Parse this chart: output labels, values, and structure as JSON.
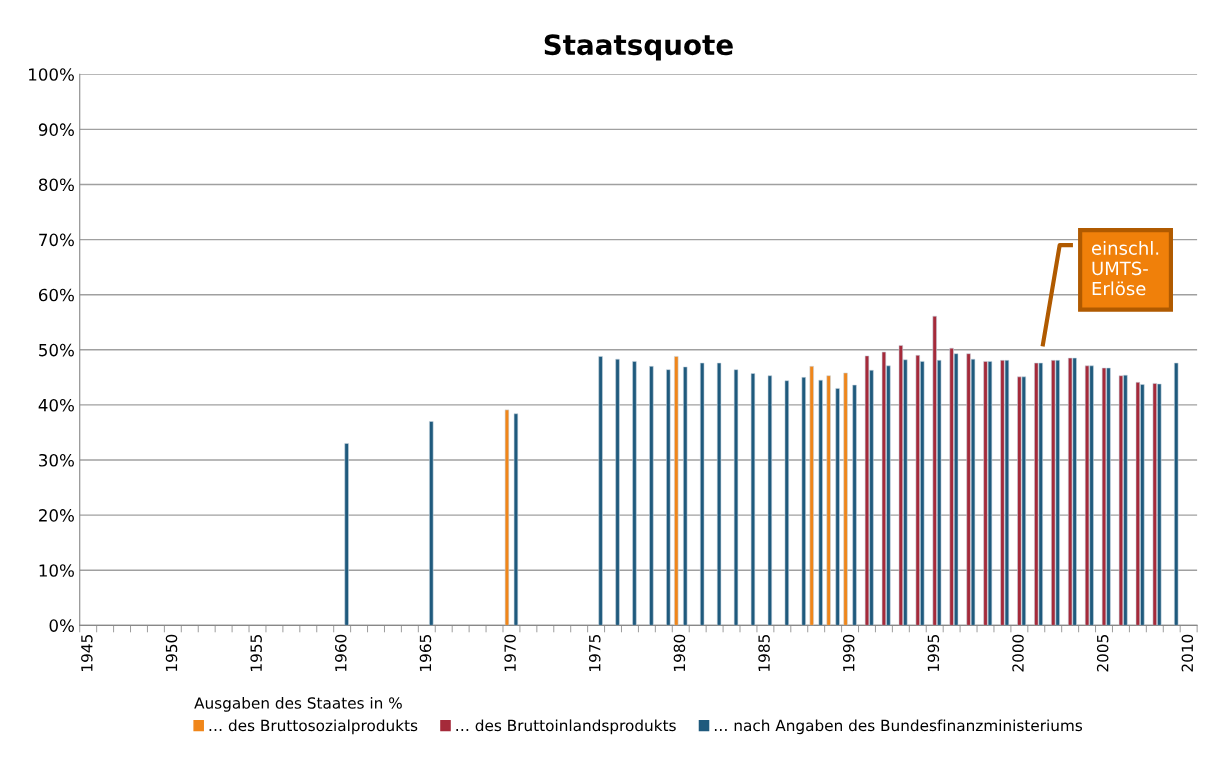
{
  "chart_data": {
    "type": "bar",
    "title": "Staatsquote",
    "categories": [
      "1945",
      null,
      null,
      null,
      null,
      "1950",
      null,
      null,
      null,
      null,
      "1955",
      null,
      null,
      null,
      null,
      "1960",
      null,
      null,
      null,
      null,
      "1965",
      null,
      null,
      null,
      null,
      "1970",
      null,
      null,
      null,
      null,
      "1975",
      null,
      null,
      null,
      null,
      "1980",
      null,
      null,
      null,
      null,
      "1985",
      null,
      null,
      null,
      null,
      "1990",
      null,
      null,
      null,
      null,
      "1995",
      null,
      null,
      null,
      null,
      "2000",
      null,
      null,
      null,
      null,
      "2005",
      null,
      null,
      null,
      null,
      "2010"
    ],
    "series": [
      {
        "name": "… des Bruttosozialprodukts",
        "color": "#f0861a",
        "values": [
          null,
          null,
          null,
          null,
          null,
          null,
          null,
          null,
          null,
          null,
          null,
          null,
          null,
          null,
          null,
          null,
          null,
          null,
          null,
          null,
          null,
          null,
          null,
          null,
          null,
          39.1,
          null,
          null,
          null,
          null,
          null,
          null,
          null,
          null,
          null,
          48.8,
          null,
          null,
          null,
          null,
          null,
          null,
          null,
          47.0,
          45.3,
          45.8,
          null,
          null,
          null,
          null,
          null,
          null,
          null,
          null,
          null,
          null,
          null,
          null,
          null,
          null,
          null,
          null,
          null,
          null,
          null,
          null
        ]
      },
      {
        "name": "… des Bruttoinlandsprodukts",
        "color": "#a52a3a",
        "values": [
          null,
          null,
          null,
          null,
          null,
          null,
          null,
          null,
          null,
          null,
          null,
          null,
          null,
          null,
          null,
          null,
          null,
          null,
          null,
          null,
          null,
          null,
          null,
          null,
          null,
          null,
          null,
          null,
          null,
          null,
          null,
          null,
          null,
          null,
          null,
          null,
          null,
          null,
          null,
          null,
          null,
          null,
          null,
          null,
          null,
          null,
          48.9,
          49.6,
          50.8,
          49.0,
          56.1,
          50.3,
          49.3,
          47.9,
          48.1,
          45.1,
          47.6,
          48.1,
          48.5,
          47.1,
          46.7,
          45.3,
          44.1,
          43.9,
          null,
          null
        ]
      },
      {
        "name": "… nach Angaben des Bundesfinanzministeriums",
        "color": "#1f5a7d",
        "values": [
          null,
          null,
          null,
          null,
          null,
          null,
          null,
          null,
          null,
          null,
          null,
          null,
          null,
          null,
          null,
          33.0,
          null,
          null,
          null,
          null,
          37.0,
          null,
          null,
          null,
          null,
          38.4,
          null,
          null,
          null,
          null,
          48.8,
          48.3,
          47.9,
          47.0,
          46.4,
          46.9,
          47.6,
          47.6,
          46.4,
          45.7,
          45.3,
          44.4,
          45.0,
          44.5,
          43.0,
          43.6,
          46.3,
          47.1,
          48.2,
          47.9,
          48.1,
          49.3,
          48.3,
          47.9,
          48.1,
          45.1,
          47.6,
          48.1,
          48.5,
          47.1,
          46.7,
          45.4,
          43.7,
          43.8,
          47.6,
          null
        ]
      }
    ],
    "ylim": [
      0,
      100
    ],
    "yticks": [
      {
        "value": 0,
        "label": "0%"
      },
      {
        "value": 10,
        "label": "10%"
      },
      {
        "value": 20,
        "label": "20%"
      },
      {
        "value": 30,
        "label": "30%"
      },
      {
        "value": 40,
        "label": "40%"
      },
      {
        "value": 50,
        "label": "50%"
      },
      {
        "value": 60,
        "label": "60%"
      },
      {
        "value": 70,
        "label": "70%"
      },
      {
        "value": 80,
        "label": "80%"
      },
      {
        "value": 90,
        "label": "90%"
      },
      {
        "value": 100,
        "label": "100%"
      }
    ],
    "grid": "y",
    "legend": "bottom",
    "legend_title": "Ausgaben des Staates in %",
    "annotations": [
      "einschl.\nUMTS-\nErlöse"
    ]
  }
}
